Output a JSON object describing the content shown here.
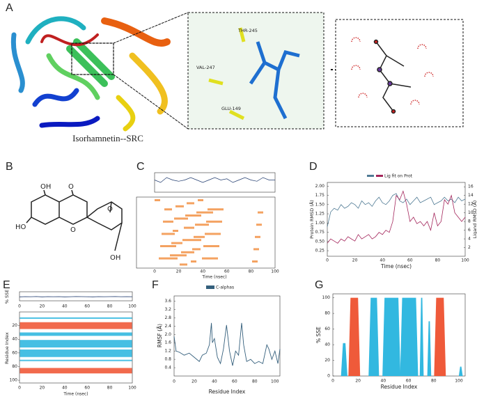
{
  "panels": {
    "A": {
      "label": "A",
      "caption": "Isorhamnetin--SRC",
      "residues": [
        "THR-245",
        "VAL-247",
        "GLU-149"
      ]
    },
    "B": {
      "label": "B",
      "atoms": [
        "OH",
        "O",
        "HO",
        "O",
        "O",
        "OH"
      ]
    },
    "C": {
      "label": "C",
      "type": "line",
      "xlabel": "Time (nsec)",
      "xlim": [
        0,
        100
      ],
      "xticks": [
        0,
        20,
        40,
        60,
        80,
        100
      ],
      "ylim": [
        0,
        8
      ],
      "x": [
        0,
        5,
        10,
        15,
        20,
        25,
        30,
        35,
        40,
        45,
        50,
        55,
        60,
        65,
        70,
        75,
        80,
        85,
        90,
        95,
        100
      ],
      "values": [
        5,
        4,
        6,
        5,
        4.5,
        5,
        6,
        5,
        4,
        5,
        6,
        5,
        5.5,
        4,
        5,
        6,
        5,
        4.5,
        6,
        5,
        5
      ],
      "color": "#1f3a6e"
    },
    "D": {
      "label": "D",
      "type": "line",
      "xlabel": "Time (nsec)",
      "ylabel": "Protein RMSD (Å)",
      "y2label": "Ligand RMSD (Å)",
      "xlim": [
        0,
        100
      ],
      "xticks": [
        0,
        20,
        40,
        60,
        80,
        100
      ],
      "ylim": [
        0.1,
        2.1
      ],
      "yticks": [
        0.25,
        {
          "value": 0.5,
          "label": "0.50"
        },
        0.75,
        {
          "value": 1,
          "label": "1.00"
        },
        1.25,
        {
          "value": 1.5,
          "label": "1.50"
        },
        1.75,
        {
          "value": 2,
          "label": "2.00"
        }
      ],
      "y2lim": [
        0,
        17
      ],
      "y2ticks": [
        2,
        4,
        6,
        8,
        10,
        12,
        14,
        16
      ],
      "x": [
        0,
        2.5,
        5,
        7.5,
        10,
        12.5,
        15,
        17.5,
        20,
        22.5,
        25,
        27.5,
        30,
        32.5,
        35,
        37.5,
        40,
        42.5,
        45,
        47.5,
        50,
        52.5,
        55,
        57.5,
        60,
        62.5,
        65,
        67.5,
        70,
        72.5,
        75,
        77.5,
        80,
        82.5,
        85,
        87.5,
        90,
        92.5,
        95,
        97.5,
        100
      ],
      "series": [
        {
          "color": "#4f7a94",
          "values": [
            0.9,
            1.3,
            1.4,
            1.35,
            1.5,
            1.4,
            1.45,
            1.55,
            1.5,
            1.4,
            1.6,
            1.5,
            1.55,
            1.45,
            1.6,
            1.7,
            1.55,
            1.5,
            1.6,
            1.75,
            1.8,
            1.6,
            1.55,
            1.65,
            1.5,
            1.6,
            1.7,
            1.55,
            1.6,
            1.65,
            1.7,
            1.5,
            1.55,
            1.6,
            1.7,
            1.6,
            1.65,
            1.55,
            1.7,
            1.6,
            1.65
          ]
        },
        {
          "name": "Lig fit on Prot",
          "color": "#a3245a",
          "axis": "y2",
          "values": [
            3,
            4,
            3.5,
            3,
            4,
            3.5,
            4.5,
            4,
            3.5,
            5,
            4,
            4.5,
            5,
            4,
            4.5,
            5.5,
            5,
            6,
            5.5,
            8,
            14,
            13,
            15,
            12,
            8,
            9,
            7.5,
            8,
            7,
            8,
            6,
            10,
            7,
            8,
            13,
            12,
            14,
            10,
            9,
            8,
            9
          ]
        }
      ]
    },
    "E": {
      "label": "E",
      "type": "line",
      "ylabel": "% SSE",
      "y2label": "Residue Index",
      "xlabel": "Time (nsec)",
      "xlim": [
        0,
        100
      ],
      "xticks": [
        0,
        20,
        40,
        60,
        80,
        100
      ],
      "ylim": [
        0,
        100
      ],
      "x": [
        0,
        5,
        10,
        15,
        20,
        25,
        30,
        35,
        40,
        45,
        50,
        55,
        60,
        65,
        70,
        75,
        80,
        85,
        90,
        95,
        100
      ],
      "values": [
        44,
        46,
        45,
        47,
        44,
        46,
        45,
        46,
        44,
        45,
        47,
        46,
        45,
        44,
        46,
        45,
        46,
        47,
        45,
        46,
        45
      ],
      "color": "#1f3a6e",
      "rlim": [
        0,
        104
      ],
      "rticks": [
        20,
        40,
        60,
        80,
        100
      ]
    },
    "F": {
      "label": "F",
      "type": "line",
      "xlabel": "Residue Index",
      "ylabel": "RMSF (Å)",
      "legend": "C-alphas",
      "color": "#345f7c",
      "xlim": [
        0,
        105
      ],
      "xticks": [
        0,
        20,
        40,
        60,
        80,
        100
      ],
      "ylim": [
        0,
        3.85
      ],
      "yticks": [
        0.4,
        0.8,
        1.2,
        1.6,
        {
          "value": 2,
          "label": "2.0"
        },
        2.4,
        2.8,
        3.2,
        3.6
      ],
      "x": [
        0,
        2,
        5,
        10,
        15,
        20,
        25,
        28,
        32,
        35,
        37,
        38,
        40,
        43,
        46,
        49,
        52,
        55,
        58,
        61,
        64,
        67,
        69,
        72,
        76,
        80,
        84,
        88,
        92,
        94,
        97,
        100,
        103,
        105
      ],
      "values": [
        1.9,
        1.2,
        1.15,
        1.0,
        1.1,
        0.9,
        0.7,
        1.0,
        1.1,
        1.5,
        2.55,
        1.6,
        1.8,
        0.9,
        0.6,
        1.3,
        2.45,
        1.2,
        0.5,
        1.2,
        1.0,
        2.55,
        1.5,
        0.7,
        0.8,
        0.6,
        0.7,
        0.6,
        1.5,
        1.3,
        0.8,
        1.2,
        0.6,
        1.3
      ]
    },
    "G": {
      "label": "G",
      "type": "area",
      "xlabel": "Residue Index",
      "ylabel": "% SSE",
      "xlim": [
        0,
        105
      ],
      "xticks": [
        0,
        20,
        40,
        60,
        80,
        100
      ],
      "ylim": [
        0,
        105
      ],
      "yticks": [
        0,
        20,
        40,
        60,
        80,
        100
      ],
      "series": [
        {
          "color": "#ef5a3a",
          "regions": [
            {
              "x0": 14,
              "x1": 20,
              "value": 100
            },
            {
              "x0": 82,
              "x1": 88,
              "value": 100
            }
          ]
        },
        {
          "color": "#32b8e0",
          "regions": [
            {
              "x0": 8,
              "x1": 10,
              "value": 42
            },
            {
              "x0": 30,
              "x1": 35,
              "value": 100
            },
            {
              "x0": 41,
              "x1": 52,
              "value": 100
            },
            {
              "x0": 55,
              "x1": 66,
              "value": 100
            },
            {
              "x0": 70,
              "x1": 71,
              "value": 100
            },
            {
              "x0": 76,
              "x1": 77,
              "value": 70
            },
            {
              "x0": 101,
              "x1": 102,
              "value": 12
            }
          ]
        }
      ]
    }
  }
}
